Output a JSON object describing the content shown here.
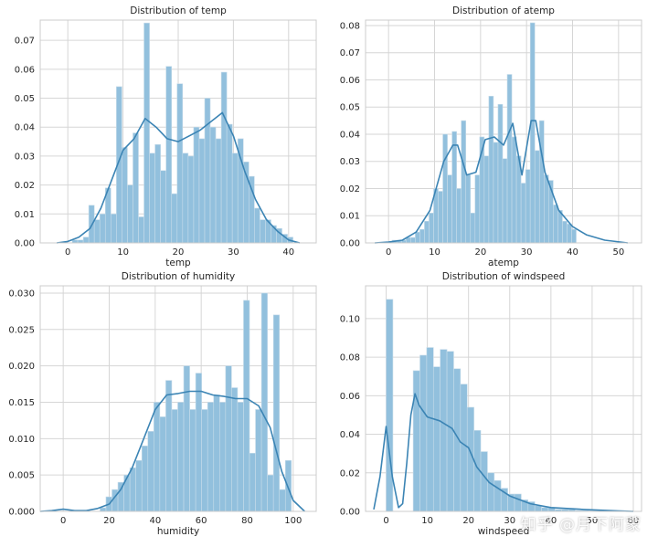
{
  "colors": {
    "bar": "#92c0dd",
    "bar_edge": "#c7dcea",
    "line": "#3b84b4",
    "grid": "#d6d6d6",
    "text": "#262626"
  },
  "watermark": "知乎 @月下阿蒙",
  "chart_data": [
    {
      "type": "bar",
      "title": "Distribution of temp",
      "xlabel": "temp",
      "ylabel": "",
      "xlim": [
        -5,
        45
      ],
      "ylim": [
        0,
        0.077
      ],
      "xticks": [
        0,
        10,
        20,
        30,
        40
      ],
      "yticks": [
        0.0,
        0.01,
        0.02,
        0.03,
        0.04,
        0.05,
        0.06,
        0.07
      ],
      "ytick_labels": [
        "0.00",
        "0.01",
        "0.02",
        "0.03",
        "0.04",
        "0.05",
        "0.06",
        "0.07"
      ],
      "grid": true,
      "bins": {
        "start": 0.8,
        "width": 1.0,
        "values": [
          0.001,
          0.001,
          0.002,
          0.013,
          0.008,
          0.01,
          0.019,
          0.01,
          0.054,
          0.033,
          0.02,
          0.038,
          0.009,
          0.076,
          0.031,
          0.034,
          0.025,
          0.061,
          0.017,
          0.055,
          0.031,
          0.03,
          0.04,
          0.036,
          0.05,
          0.04,
          0.036,
          0.059,
          0.041,
          0.031,
          0.036,
          0.028,
          0.023,
          0.012,
          0.008,
          0.008,
          0.006,
          0.005,
          0.003,
          0.002
        ]
      },
      "kde": {
        "x": [
          -2,
          0,
          2,
          4,
          6,
          8,
          10,
          12,
          14,
          16,
          18,
          20,
          22,
          24,
          26,
          28,
          30,
          32,
          34,
          36,
          38,
          40,
          42
        ],
        "y": [
          0.0,
          0.0005,
          0.002,
          0.005,
          0.012,
          0.022,
          0.032,
          0.036,
          0.043,
          0.04,
          0.036,
          0.035,
          0.037,
          0.039,
          0.042,
          0.045,
          0.037,
          0.025,
          0.015,
          0.008,
          0.004,
          0.001,
          0.0
        ]
      }
    },
    {
      "type": "bar",
      "title": "Distribution of atemp",
      "xlabel": "atemp",
      "ylabel": "",
      "xlim": [
        -5,
        55
      ],
      "ylim": [
        0,
        0.082
      ],
      "xticks": [
        0,
        10,
        20,
        30,
        40,
        50
      ],
      "yticks": [
        0.0,
        0.01,
        0.02,
        0.03,
        0.04,
        0.05,
        0.06,
        0.07,
        0.08
      ],
      "ytick_labels": [
        "0.00",
        "0.01",
        "0.02",
        "0.03",
        "0.04",
        "0.05",
        "0.06",
        "0.07",
        "0.08"
      ],
      "grid": true,
      "bins": {
        "start": 0.8,
        "width": 1.0,
        "values": [
          0.001,
          0.001,
          0.001,
          0.002,
          0.002,
          0.004,
          0.005,
          0.008,
          0.011,
          0.02,
          0.019,
          0.04,
          0.025,
          0.041,
          0.02,
          0.045,
          0.025,
          0.011,
          0.025,
          0.039,
          0.032,
          0.054,
          0.037,
          0.051,
          0.031,
          0.062,
          0.039,
          0.032,
          0.022,
          0.027,
          0.081,
          0.034,
          0.045,
          0.025,
          0.023,
          0.014,
          0.012,
          0.008,
          0.007,
          0.005
        ]
      },
      "kde": {
        "x": [
          -3,
          0,
          3,
          6,
          9,
          12,
          14,
          15,
          17,
          19,
          21,
          23,
          25,
          27,
          29,
          31,
          32,
          34,
          37,
          40,
          43,
          47,
          52
        ],
        "y": [
          0.0,
          0.0003,
          0.001,
          0.004,
          0.012,
          0.03,
          0.036,
          0.036,
          0.025,
          0.026,
          0.038,
          0.039,
          0.036,
          0.044,
          0.025,
          0.045,
          0.045,
          0.026,
          0.012,
          0.006,
          0.003,
          0.001,
          0.0
        ]
      }
    },
    {
      "type": "bar",
      "title": "Distribution of humidity",
      "xlabel": "humidity",
      "ylabel": "",
      "xlim": [
        -10,
        110
      ],
      "ylim": [
        0,
        0.031
      ],
      "xticks": [
        0,
        20,
        40,
        60,
        80,
        100
      ],
      "yticks": [
        0.0,
        0.005,
        0.01,
        0.015,
        0.02,
        0.025,
        0.03
      ],
      "ytick_labels": [
        "0.000",
        "0.005",
        "0.010",
        "0.015",
        "0.020",
        "0.025",
        "0.030"
      ],
      "grid": true,
      "bins": {
        "start": 16,
        "width": 2.6,
        "values": [
          0.0005,
          0.002,
          0.003,
          0.004,
          0.005,
          0.006,
          0.007,
          0.009,
          0.011,
          0.015,
          0.013,
          0.018,
          0.014,
          0.015,
          0.02,
          0.014,
          0.019,
          0.014,
          0.015,
          0.016,
          0.015,
          0.02,
          0.017,
          0.015,
          0.029,
          0.008,
          0.014,
          0.03,
          0.005,
          0.027,
          0.003,
          0.007
        ]
      },
      "kde": {
        "x": [
          -10,
          -5,
          0,
          5,
          10,
          15,
          20,
          25,
          30,
          35,
          40,
          45,
          50,
          55,
          60,
          65,
          70,
          75,
          80,
          85,
          90,
          95,
          100,
          105
        ],
        "y": [
          0.0,
          0.0001,
          0.0003,
          0.0001,
          0.0001,
          0.0004,
          0.001,
          0.003,
          0.006,
          0.01,
          0.014,
          0.016,
          0.0162,
          0.0165,
          0.0165,
          0.016,
          0.0158,
          0.0155,
          0.0155,
          0.0145,
          0.0115,
          0.0055,
          0.0015,
          0.0
        ]
      }
    },
    {
      "type": "bar",
      "title": "Distribution of windspeed",
      "xlabel": "windspeed",
      "ylabel": "",
      "xlim": [
        -5,
        62
      ],
      "ylim": [
        0,
        0.117
      ],
      "xticks": [
        0,
        10,
        20,
        30,
        40,
        50,
        60
      ],
      "yticks": [
        0.0,
        0.02,
        0.04,
        0.06,
        0.08,
        0.1
      ],
      "ytick_labels": [
        "0.00",
        "0.02",
        "0.04",
        "0.06",
        "0.08",
        "0.10"
      ],
      "grid": true,
      "bins": {
        "start": 0,
        "width": 1.64,
        "values": [
          0.11,
          0.0,
          0.0,
          0.0,
          0.073,
          0.081,
          0.085,
          0.075,
          0.084,
          0.083,
          0.074,
          0.066,
          0.054,
          0.042,
          0.031,
          0.02,
          0.016,
          0.012,
          0.009,
          0.009,
          0.006,
          0.005,
          0.003,
          0.002,
          0.002,
          0.001,
          0.001,
          0.001,
          0.0005,
          0.0005,
          0.0003,
          0.0003,
          0.0002,
          0.0002,
          0.0001,
          0.0001
        ]
      },
      "kde": {
        "x": [
          -3,
          -1.5,
          0,
          1.5,
          3,
          4,
          5,
          6,
          7,
          8,
          10,
          13,
          16,
          18,
          20,
          22,
          25,
          30,
          35,
          40,
          48,
          56,
          60
        ],
        "y": [
          0.001,
          0.018,
          0.044,
          0.018,
          0.002,
          0.004,
          0.025,
          0.05,
          0.061,
          0.055,
          0.049,
          0.047,
          0.043,
          0.036,
          0.033,
          0.023,
          0.015,
          0.008,
          0.004,
          0.002,
          0.001,
          0.0003,
          0.0
        ]
      }
    }
  ]
}
